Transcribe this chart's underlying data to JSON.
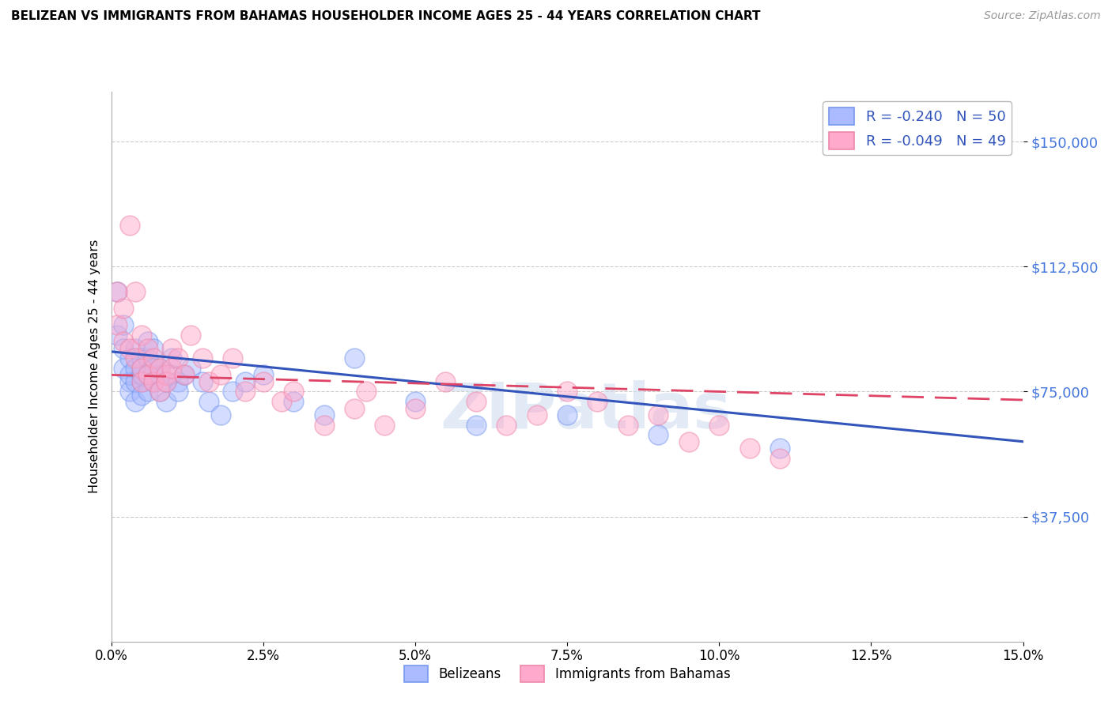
{
  "title": "BELIZEAN VS IMMIGRANTS FROM BAHAMAS HOUSEHOLDER INCOME AGES 25 - 44 YEARS CORRELATION CHART",
  "source": "Source: ZipAtlas.com",
  "ylabel": "Householder Income Ages 25 - 44 years",
  "yticks": [
    0,
    37500,
    75000,
    112500,
    150000
  ],
  "xmin": 0.0,
  "xmax": 0.15,
  "ymin": 0,
  "ymax": 165000,
  "blue_R": -0.24,
  "blue_N": 50,
  "pink_R": -0.049,
  "pink_N": 49,
  "blue_color": "#aabbff",
  "pink_color": "#ffaacc",
  "blue_edge_color": "#7799ee",
  "pink_edge_color": "#ee88aa",
  "blue_line_color": "#3355bb",
  "pink_line_color": "#dd4466",
  "watermark": "ZIPatlas",
  "legend_label_blue": "Belizeans",
  "legend_label_pink": "Immigrants from Bahamas",
  "blue_x": [
    0.001,
    0.001,
    0.002,
    0.002,
    0.002,
    0.003,
    0.003,
    0.003,
    0.003,
    0.004,
    0.004,
    0.004,
    0.004,
    0.005,
    0.005,
    0.005,
    0.005,
    0.005,
    0.006,
    0.006,
    0.006,
    0.006,
    0.007,
    0.007,
    0.007,
    0.008,
    0.008,
    0.008,
    0.009,
    0.009,
    0.01,
    0.01,
    0.011,
    0.011,
    0.012,
    0.013,
    0.015,
    0.016,
    0.018,
    0.02,
    0.022,
    0.025,
    0.03,
    0.035,
    0.04,
    0.05,
    0.06,
    0.075,
    0.09,
    0.11
  ],
  "blue_y": [
    92000,
    105000,
    88000,
    82000,
    95000,
    78000,
    85000,
    75000,
    80000,
    82000,
    78000,
    88000,
    72000,
    85000,
    78000,
    80000,
    74000,
    82000,
    80000,
    75000,
    85000,
    90000,
    82000,
    78000,
    88000,
    80000,
    75000,
    82000,
    78000,
    72000,
    80000,
    85000,
    78000,
    75000,
    80000,
    82000,
    78000,
    72000,
    68000,
    75000,
    78000,
    80000,
    72000,
    68000,
    85000,
    72000,
    65000,
    68000,
    62000,
    58000
  ],
  "pink_x": [
    0.001,
    0.001,
    0.002,
    0.002,
    0.003,
    0.003,
    0.004,
    0.004,
    0.005,
    0.005,
    0.005,
    0.006,
    0.006,
    0.007,
    0.007,
    0.008,
    0.008,
    0.009,
    0.009,
    0.01,
    0.01,
    0.011,
    0.012,
    0.013,
    0.015,
    0.016,
    0.018,
    0.02,
    0.022,
    0.025,
    0.028,
    0.03,
    0.035,
    0.04,
    0.042,
    0.045,
    0.05,
    0.055,
    0.06,
    0.065,
    0.07,
    0.075,
    0.08,
    0.085,
    0.09,
    0.095,
    0.1,
    0.105,
    0.11
  ],
  "pink_y": [
    105000,
    95000,
    90000,
    100000,
    125000,
    88000,
    105000,
    85000,
    92000,
    82000,
    78000,
    88000,
    80000,
    85000,
    78000,
    82000,
    75000,
    80000,
    78000,
    82000,
    88000,
    85000,
    80000,
    92000,
    85000,
    78000,
    80000,
    85000,
    75000,
    78000,
    72000,
    75000,
    65000,
    70000,
    75000,
    65000,
    70000,
    78000,
    72000,
    65000,
    68000,
    75000,
    72000,
    65000,
    68000,
    60000,
    65000,
    58000,
    55000
  ]
}
